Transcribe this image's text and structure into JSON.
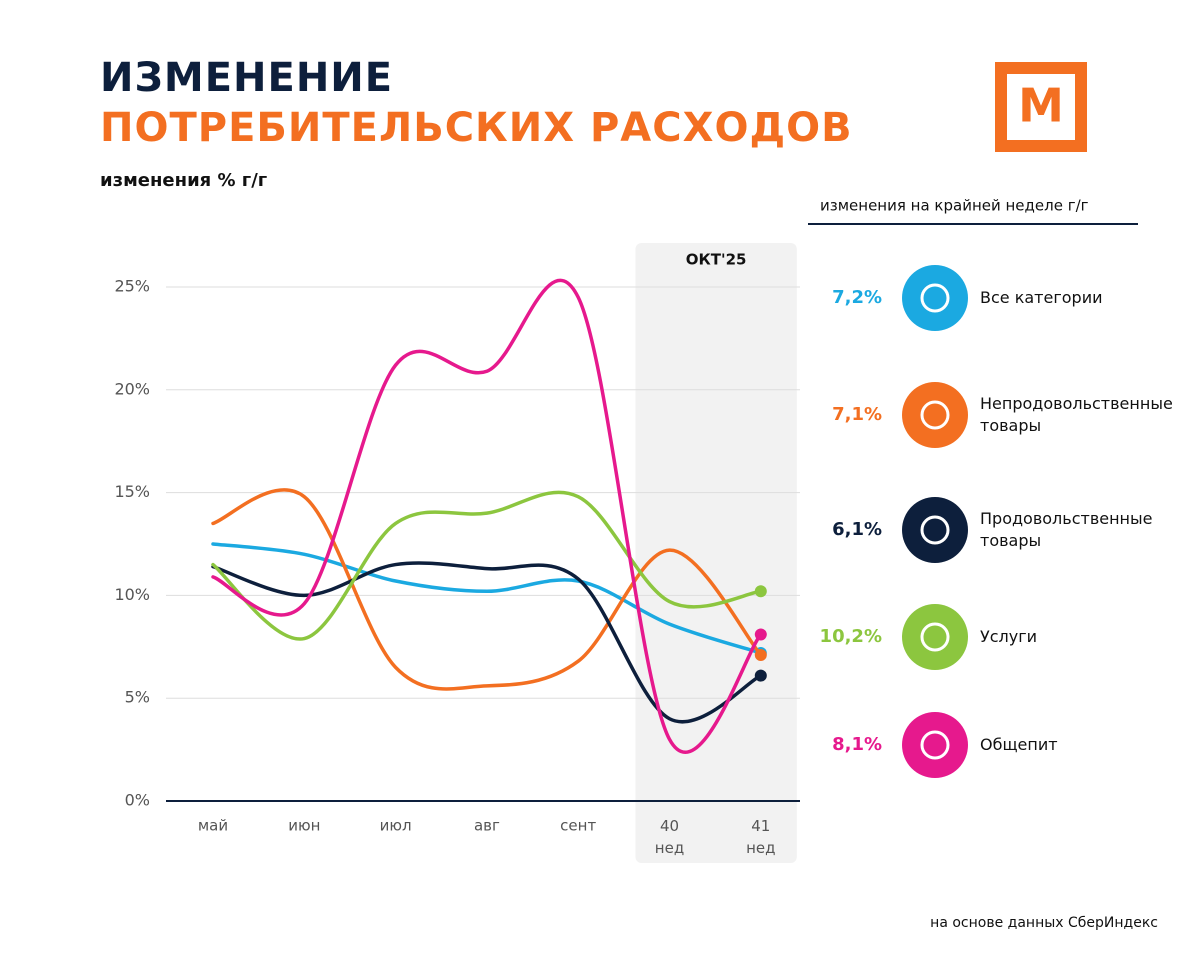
{
  "chart_data": {
    "type": "line",
    "title": [
      "ИЗМЕНЕНИЕ",
      "ПОТРЕБИТЕЛЬСКИХ РАСХОДОВ"
    ],
    "logo": "М",
    "ylabel": "изменения % г/г",
    "legend_title": "изменения на крайней неделе г/г",
    "annotation": "ОКТ'25",
    "source": "на основе данных СберИндекс",
    "categories": [
      "май",
      "июн",
      "июл",
      "авг",
      "сент",
      "40\nнед",
      "41\nнед"
    ],
    "ylim": [
      0,
      25
    ],
    "yticks": [
      {
        "value": 0,
        "label": "0%"
      },
      {
        "value": 5,
        "label": "5%"
      },
      {
        "value": 10,
        "label": "10%"
      },
      {
        "value": 15,
        "label": "15%"
      },
      {
        "value": 20,
        "label": "20%"
      },
      {
        "value": 25,
        "label": "25%"
      }
    ],
    "grid": true,
    "series": [
      {
        "name": "Все категории",
        "color": "#1ba9e1",
        "values": [
          12.5,
          12.0,
          10.7,
          10.2,
          10.7,
          8.6,
          7.2
        ],
        "value_labels": [
          null,
          null,
          null,
          null,
          null,
          null,
          "7,2%"
        ]
      },
      {
        "name": "Непродовольственные товары",
        "color": "#f36f21",
        "values": [
          13.5,
          14.8,
          6.5,
          5.6,
          6.8,
          12.2,
          7.1
        ],
        "value_labels": [
          null,
          null,
          null,
          null,
          null,
          null,
          "7,1%"
        ]
      },
      {
        "name": "Продовольственные товары",
        "color": "#0d1f3c",
        "values": [
          11.4,
          10.0,
          11.5,
          11.3,
          10.8,
          4.0,
          6.1
        ],
        "value_labels": [
          null,
          null,
          null,
          null,
          null,
          null,
          "6,1%"
        ]
      },
      {
        "name": "Услуги",
        "color": "#8cc63f",
        "values": [
          11.5,
          7.9,
          13.5,
          14.0,
          14.8,
          9.7,
          10.2
        ],
        "value_labels": [
          null,
          null,
          null,
          null,
          null,
          null,
          "10,2%"
        ]
      },
      {
        "name": "Общепит",
        "color": "#e6198d",
        "values": [
          10.9,
          9.6,
          21.2,
          20.9,
          24.5,
          3.0,
          8.1
        ],
        "value_labels": [
          null,
          null,
          null,
          null,
          null,
          null,
          "8,1%"
        ]
      }
    ]
  }
}
